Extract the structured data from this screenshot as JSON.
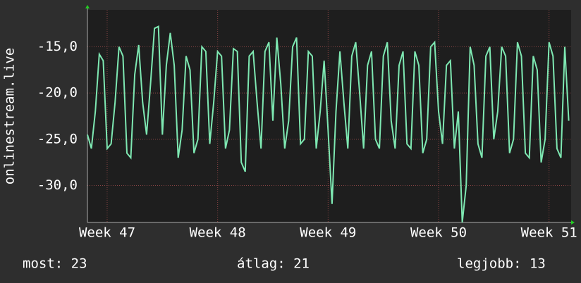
{
  "chart_data": {
    "type": "line",
    "y_label": "onlinestream.live",
    "x": [
      -1.25,
      -1,
      -0.75,
      -0.5,
      -0.25,
      0,
      0.25,
      0.5,
      0.75,
      1,
      1.25,
      1.5,
      1.75,
      2,
      2.25,
      2.5,
      2.75,
      3,
      3.25,
      3.5,
      3.75,
      4,
      4.25,
      4.5,
      4.75,
      5,
      5.25,
      5.5,
      5.75,
      6,
      6.25,
      6.5,
      6.75,
      7,
      7.25,
      7.5,
      7.75,
      8,
      8.25,
      8.5,
      8.75,
      9,
      9.25,
      9.5,
      9.75,
      10,
      10.25,
      10.5,
      10.75,
      11,
      11.25,
      11.5,
      11.75,
      12,
      12.25,
      12.5,
      12.75,
      13,
      13.25,
      13.5,
      13.75,
      14,
      14.25,
      14.5,
      14.75,
      15,
      15.25,
      15.5,
      15.75,
      16,
      16.25,
      16.5,
      16.75,
      17,
      17.25,
      17.5,
      17.75,
      18,
      18.25,
      18.5,
      18.75,
      19,
      19.25,
      19.5,
      19.75,
      20,
      20.25,
      20.5,
      20.75,
      21,
      21.25,
      21.5,
      21.75,
      22,
      22.25,
      22.5,
      22.75,
      23,
      23.25,
      23.5,
      23.75,
      24,
      24.25,
      24.5,
      24.75,
      25,
      25.25,
      25.5,
      25.75,
      26,
      26.25,
      26.5,
      26.75,
      27,
      27.25,
      27.5,
      27.75,
      28,
      28.25,
      28.5,
      28.75,
      29,
      29.25
    ],
    "series": [
      {
        "name": "onlinestream.live",
        "color": "#7ee8b2",
        "values": [
          -24.5,
          -26,
          -22,
          -15.8,
          -16.5,
          -26,
          -25.5,
          -21,
          -15,
          -16,
          -26.5,
          -27,
          -18,
          -14.8,
          -21,
          -24.5,
          -19,
          -13,
          -12.8,
          -24.5,
          -17,
          -13.5,
          -17,
          -27,
          -24,
          -16,
          -17.5,
          -26.5,
          -25,
          -15,
          -15.5,
          -25.5,
          -21,
          -15.5,
          -16,
          -26,
          -24,
          -15.2,
          -15.5,
          -27.5,
          -28.5,
          -16,
          -15.5,
          -21,
          -26,
          -15.5,
          -14.5,
          -23,
          -14,
          -19,
          -26,
          -23,
          -15,
          -14,
          -25.5,
          -25,
          -15.5,
          -16,
          -26,
          -22,
          -16.5,
          -24,
          -32,
          -22,
          -15.5,
          -21,
          -26,
          -16,
          -14.5,
          -20,
          -26,
          -17,
          -15.5,
          -25,
          -26,
          -16,
          -14.5,
          -23,
          -26,
          -17,
          -15.5,
          -25.5,
          -26,
          -15.5,
          -17,
          -26.5,
          -25,
          -15,
          -14.5,
          -22,
          -25.5,
          -17,
          -16.5,
          -26,
          -22,
          -34,
          -30,
          -15,
          -17,
          -25.5,
          -27,
          -16,
          -15,
          -25,
          -22,
          -15,
          -16,
          -26.5,
          -25,
          -14.5,
          -16,
          -26.5,
          -27,
          -16,
          -17.5,
          -27.5,
          -25,
          -14.5,
          -16,
          -26,
          -27,
          -15,
          -23
        ]
      }
    ],
    "xlim": [
      -1.25,
      29.4
    ],
    "xticks": [
      {
        "value": 0,
        "label": "Week 47"
      },
      {
        "value": 7,
        "label": "Week 48"
      },
      {
        "value": 14,
        "label": "Week 49"
      },
      {
        "value": 21,
        "label": "Week 50"
      },
      {
        "value": 28,
        "label": "Week 51"
      }
    ],
    "ylim": [
      -34,
      -11
    ],
    "yticks": [
      {
        "value": -15,
        "label": "-15,0"
      },
      {
        "value": -20,
        "label": "-20,0"
      },
      {
        "value": -25,
        "label": "-25,0"
      },
      {
        "value": -30,
        "label": "-30,0"
      }
    ],
    "grid": true,
    "footer": [
      "most: 23",
      "átlag: 21",
      "legjobb: 13"
    ]
  }
}
